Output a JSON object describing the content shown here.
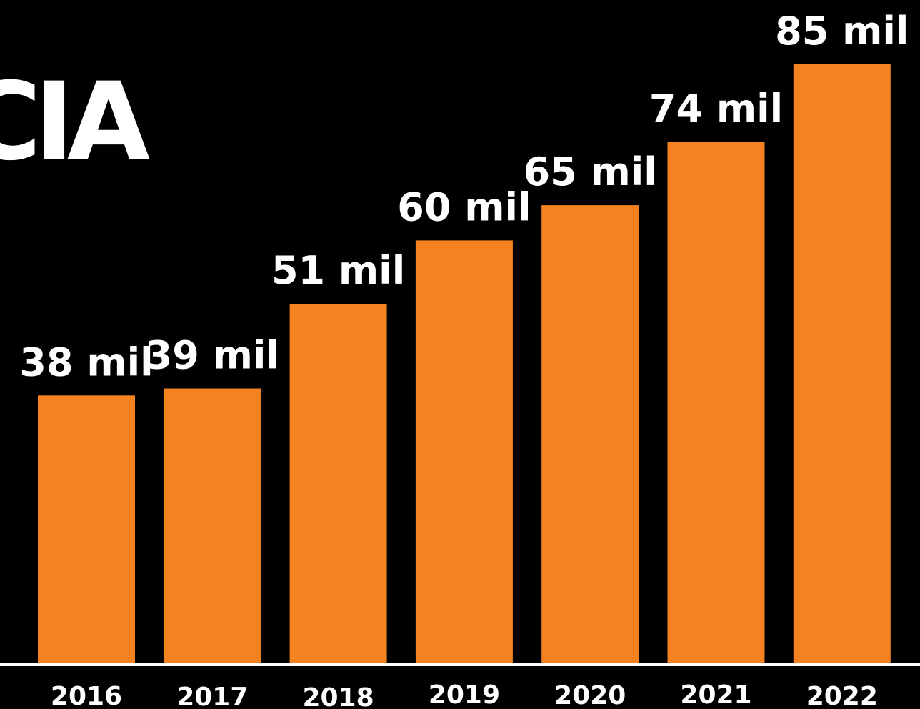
{
  "title_fragment": "CIA",
  "colors": {
    "background": "#000000",
    "bar": "#f58220",
    "text": "#ffffff",
    "baseline": "#ffffff"
  },
  "chart_data": {
    "type": "bar",
    "categories": [
      "2016",
      "2017",
      "2018",
      "2019",
      "2020",
      "2021",
      "2022"
    ],
    "values": [
      38,
      39,
      51,
      60,
      65,
      74,
      85
    ],
    "value_labels": [
      "38 mil",
      "39 mil",
      "51 mil",
      "60 mil",
      "65 mil",
      "74 mil",
      "85 mil"
    ],
    "unit": "mil",
    "title": "",
    "xlabel": "",
    "ylabel": "",
    "ylim": [
      0,
      85
    ],
    "grid": false,
    "legend": "none",
    "y_axis_visible": false,
    "x_axis_baseline": true
  }
}
